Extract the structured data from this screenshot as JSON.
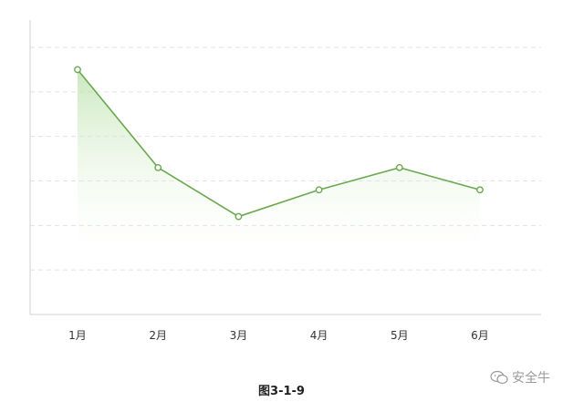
{
  "chart_data": {
    "type": "area",
    "categories": [
      "1月",
      "2月",
      "3月",
      "4月",
      "5月",
      "6月"
    ],
    "values": [
      5.5,
      3.3,
      2.2,
      2.8,
      3.3,
      2.8
    ],
    "ylim": [
      0,
      6
    ],
    "grid": true,
    "colors": {
      "line": "#6aa84f",
      "fill_top": "#b9e0a8",
      "grid": "#e2e2e2",
      "axis": "#d0d0d0"
    }
  },
  "caption": "图3-1-9",
  "watermark": {
    "icon": "chat-bubble-icon",
    "text": "安全牛"
  }
}
